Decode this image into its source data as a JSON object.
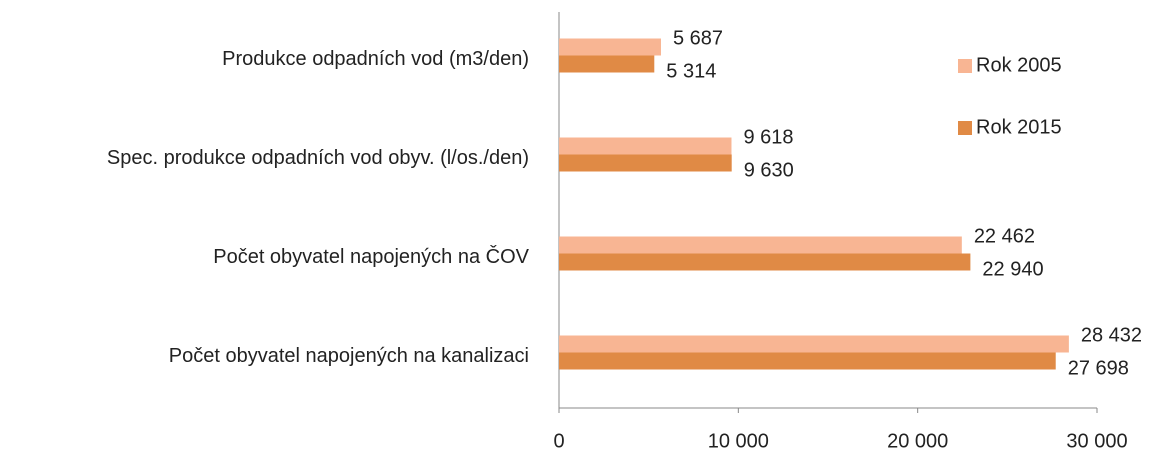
{
  "chart_data": {
    "type": "barh",
    "categories": [
      "Produkce odpadních vod (m3/den)",
      "Spec. produkce odpadních vod obyv. (l/os./den)",
      "Počet obyvatel napojených na ČOV",
      "Počet obyvatel napojených na kanalizaci"
    ],
    "series": [
      {
        "name": "Rok 2005",
        "color": "#f8b593",
        "values": [
          5687,
          9618,
          22462,
          28432
        ],
        "value_labels": [
          "5 687",
          "9 618",
          "22 462",
          "28 432"
        ]
      },
      {
        "name": "Rok 2015",
        "color": "#e08a45",
        "values": [
          5314,
          9630,
          22940,
          27698
        ],
        "value_labels": [
          "5 314",
          "9 630",
          "22 940",
          "27 698"
        ]
      }
    ],
    "xlim": [
      0,
      30000
    ],
    "xticks": [
      0,
      {
        "value": 10000,
        "label": "10 000"
      },
      {
        "value": 20000,
        "label": "20 000"
      },
      {
        "value": 30000,
        "label": "30 000"
      }
    ],
    "legend": "right"
  }
}
